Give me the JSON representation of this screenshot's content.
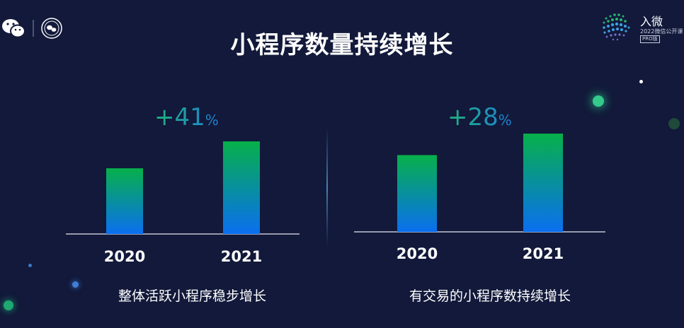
{
  "title": "小程序数量持续增长",
  "brand": {
    "name": "入微",
    "subtitle": "2022微信公开课",
    "badge": "PRO版"
  },
  "colors": {
    "bar_top": "#07b04a",
    "bar_bottom": "#0a6ff0",
    "background": "#12193a"
  },
  "icons": [
    "wechat-icon",
    "seal-logo-icon",
    "dot-matrix-logo-icon"
  ],
  "chart_data": [
    {
      "type": "bar",
      "categories": [
        "2020",
        "2021"
      ],
      "values": [
        100,
        141
      ],
      "ylim": [
        0,
        141
      ],
      "growth_value": "+41",
      "growth_unit": "%",
      "caption": "整体活跃小程序稳步增长"
    },
    {
      "type": "bar",
      "categories": [
        "2020",
        "2021"
      ],
      "values": [
        100,
        128
      ],
      "ylim": [
        0,
        128
      ],
      "growth_value": "+28",
      "growth_unit": "%",
      "caption": "有交易的小程序数持续增长"
    }
  ]
}
